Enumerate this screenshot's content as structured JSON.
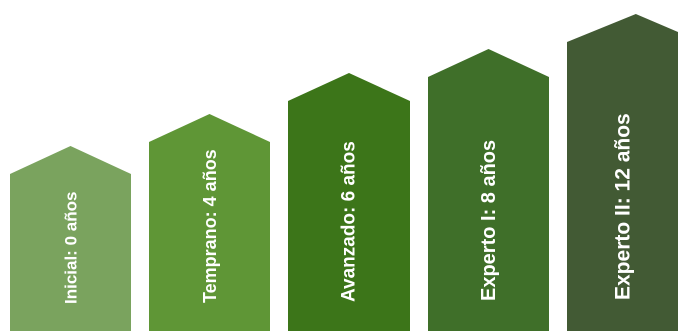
{
  "steps": [
    {
      "label": "Inicial: 0 años",
      "color": "#7aa35e"
    },
    {
      "label": "Temprano: 4 años",
      "color": "#5f9636"
    },
    {
      "label": "Avanzado: 6 años",
      "color": "#3c7519"
    },
    {
      "label": "Experto I: 8 años",
      "color": "#3f6f29"
    },
    {
      "label": "Experto II: 12 años",
      "color": "#425a34"
    }
  ]
}
